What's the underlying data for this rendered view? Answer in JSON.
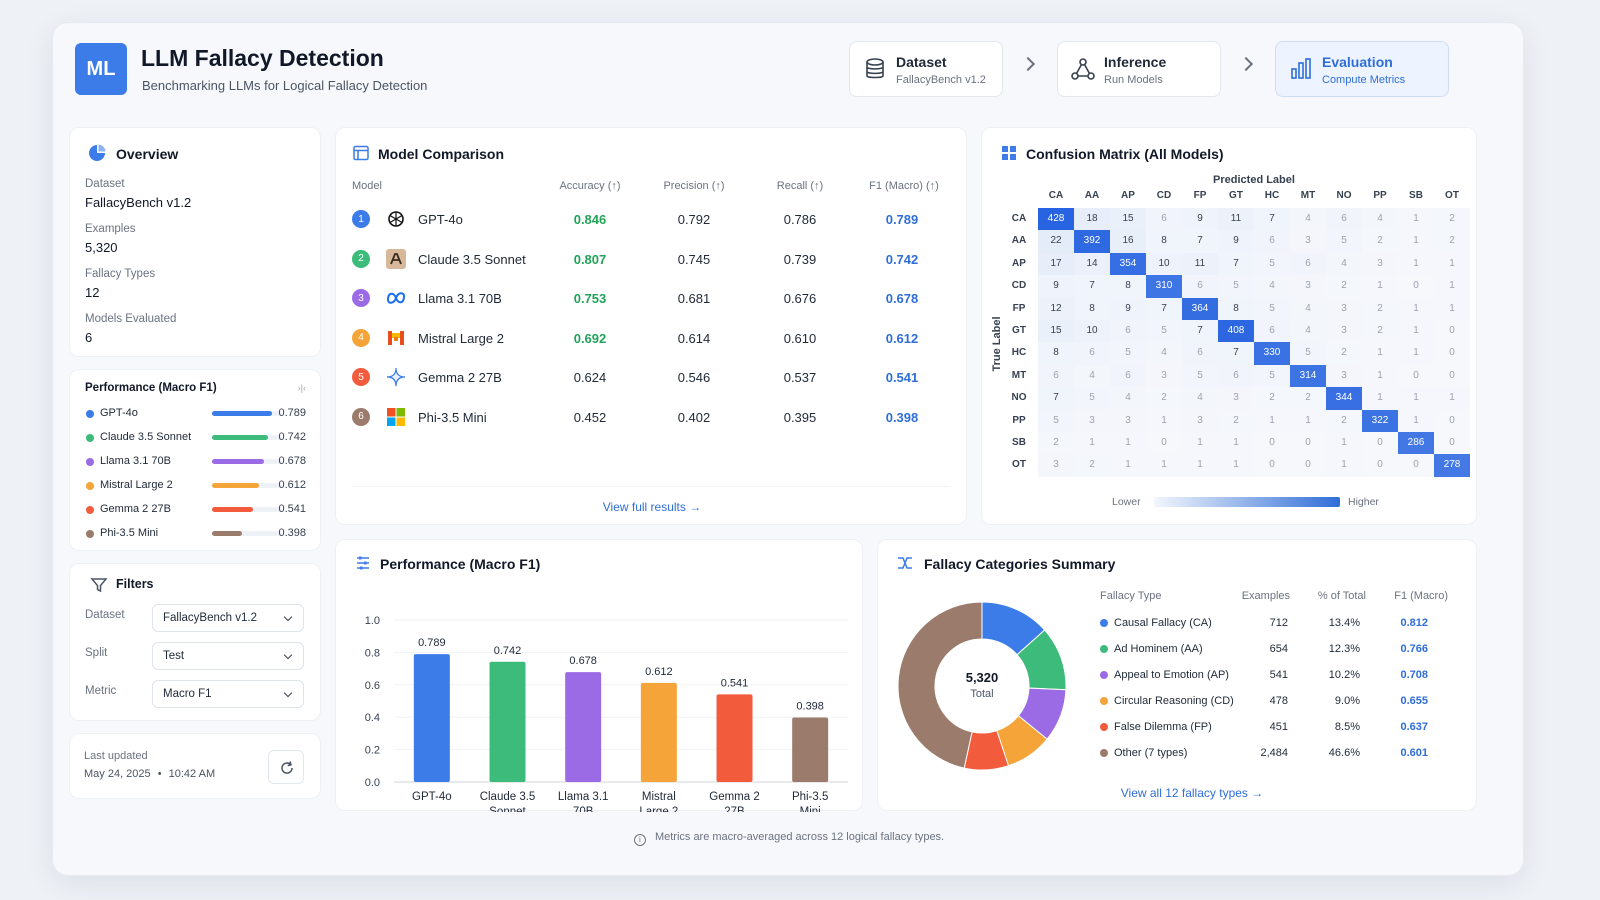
{
  "header": {
    "logo": "ML",
    "title": "LLM Fallacy Detection",
    "subtitle": "Benchmarking LLMs for Logical Fallacy Detection",
    "steps": [
      {
        "title": "Dataset",
        "sub": "FallacyBench v1.2",
        "icon": "database-icon"
      },
      {
        "title": "Inference",
        "sub": "Run Models",
        "icon": "network-icon"
      },
      {
        "title": "Evaluation",
        "sub": "Compute Metrics",
        "icon": "bar-chart-icon"
      }
    ]
  },
  "overview": {
    "title": "Overview",
    "items": [
      {
        "label": "Dataset",
        "value": "FallacyBench v1.2"
      },
      {
        "label": "Examples",
        "value": "5,320"
      },
      {
        "label": "Fallacy Types",
        "value": "12"
      },
      {
        "label": "Models Evaluated",
        "value": "6"
      }
    ]
  },
  "performance_sidebar": {
    "title": "Performance (Macro F1)",
    "expand_glyph": "›|‹",
    "items": [
      {
        "name": "GPT-4o",
        "value": "0.789",
        "frac": 0.789,
        "color": "#3b7ce8"
      },
      {
        "name": "Claude 3.5 Sonnet",
        "value": "0.742",
        "frac": 0.742,
        "color": "#3dbb7a"
      },
      {
        "name": "Llama 3.1 70B",
        "value": "0.678",
        "frac": 0.678,
        "color": "#9b6be6"
      },
      {
        "name": "Mistral Large 2",
        "value": "0.612",
        "frac": 0.612,
        "color": "#f5a43a"
      },
      {
        "name": "Gemma 2 27B",
        "value": "0.541",
        "frac": 0.541,
        "color": "#f25c3c"
      },
      {
        "name": "Phi-3.5 Mini",
        "value": "0.398",
        "frac": 0.398,
        "color": "#9b7b6b"
      }
    ]
  },
  "filters": {
    "title": "Filters",
    "items": [
      {
        "label": "Dataset",
        "value": "FallacyBench v1.2"
      },
      {
        "label": "Split",
        "value": "Test"
      },
      {
        "label": "Metric",
        "value": "Macro F1"
      }
    ]
  },
  "updated": {
    "label": "Last updated",
    "date": "May 24, 2025",
    "sep": "•",
    "time": "10:42 AM"
  },
  "model_comparison": {
    "title": "Model Comparison",
    "columns": [
      "Model",
      "Accuracy (↑)",
      "Precision (↑)",
      "Recall (↑)",
      "F1 (Macro) (↑)"
    ],
    "rows": [
      {
        "rank": "1",
        "name": "GPT-4o",
        "acc": "0.846",
        "prec": "0.792",
        "rec": "0.786",
        "f1": "0.789",
        "rank_color": "#3b7ce8",
        "acc_green": true
      },
      {
        "rank": "2",
        "name": "Claude 3.5 Sonnet",
        "acc": "0.807",
        "prec": "0.745",
        "rec": "0.739",
        "f1": "0.742",
        "rank_color": "#3dbb7a",
        "acc_green": true
      },
      {
        "rank": "3",
        "name": "Llama 3.1 70B",
        "acc": "0.753",
        "prec": "0.681",
        "rec": "0.676",
        "f1": "0.678",
        "rank_color": "#9b6be6",
        "acc_green": true
      },
      {
        "rank": "4",
        "name": "Mistral Large 2",
        "acc": "0.692",
        "prec": "0.614",
        "rec": "0.610",
        "f1": "0.612",
        "rank_color": "#f5a43a",
        "acc_green": true
      },
      {
        "rank": "5",
        "name": "Gemma 2 27B",
        "acc": "0.624",
        "prec": "0.546",
        "rec": "0.537",
        "f1": "0.541",
        "rank_color": "#f25c3c",
        "acc_green": false
      },
      {
        "rank": "6",
        "name": "Phi-3.5 Mini",
        "acc": "0.452",
        "prec": "0.402",
        "rec": "0.395",
        "f1": "0.398",
        "rank_color": "#9b7b6b",
        "acc_green": false
      }
    ],
    "link": "View full results →"
  },
  "confusion": {
    "title": "Confusion Matrix (All Models)",
    "x_title": "Predicted Label",
    "y_title": "True Label",
    "labels": [
      "CA",
      "AA",
      "AP",
      "CD",
      "FP",
      "GT",
      "HC",
      "MT",
      "NO",
      "PP",
      "SB",
      "OT"
    ],
    "matrix": [
      [
        428,
        18,
        15,
        6,
        9,
        11,
        7,
        4,
        6,
        4,
        1,
        2
      ],
      [
        22,
        392,
        16,
        8,
        7,
        9,
        6,
        3,
        5,
        2,
        1,
        2
      ],
      [
        17,
        14,
        354,
        10,
        11,
        7,
        5,
        6,
        4,
        3,
        1,
        1
      ],
      [
        9,
        7,
        8,
        310,
        6,
        5,
        4,
        3,
        2,
        1,
        0,
        1
      ],
      [
        12,
        8,
        9,
        7,
        364,
        8,
        5,
        4,
        3,
        2,
        1,
        1
      ],
      [
        15,
        10,
        6,
        5,
        7,
        408,
        6,
        4,
        3,
        2,
        1,
        0
      ],
      [
        8,
        6,
        5,
        4,
        6,
        7,
        330,
        5,
        2,
        1,
        1,
        0
      ],
      [
        6,
        4,
        6,
        3,
        5,
        6,
        5,
        314,
        3,
        1,
        0,
        0
      ],
      [
        7,
        5,
        4,
        2,
        4,
        3,
        2,
        2,
        344,
        1,
        1,
        1
      ],
      [
        5,
        3,
        3,
        1,
        3,
        2,
        1,
        1,
        2,
        322,
        1,
        0
      ],
      [
        2,
        1,
        1,
        0,
        1,
        1,
        0,
        0,
        1,
        0,
        286,
        0
      ],
      [
        3,
        2,
        1,
        1,
        1,
        1,
        0,
        0,
        1,
        0,
        0,
        278
      ]
    ],
    "legend_low": "Lower",
    "legend_high": "Higher"
  },
  "chart_data": {
    "type": "bar",
    "title": "Performance (Macro F1)",
    "categories": [
      "GPT-4o",
      "Claude 3.5 Sonnet",
      "Llama 3.1 70B",
      "Mistral Large 2",
      "Gemma 2 27B",
      "Phi-3.5 Mini"
    ],
    "category_lines": [
      [
        "GPT-4o"
      ],
      [
        "Claude 3.5",
        "Sonnet"
      ],
      [
        "Llama 3.1",
        "70B"
      ],
      [
        "Mistral",
        "Large 2"
      ],
      [
        "Gemma 2",
        "27B"
      ],
      [
        "Phi-3.5",
        "Mini"
      ]
    ],
    "values": [
      0.789,
      0.742,
      0.678,
      0.612,
      0.541,
      0.398
    ],
    "value_labels": [
      "0.789",
      "0.742",
      "0.678",
      "0.612",
      "0.541",
      "0.398"
    ],
    "colors": [
      "#3b7ce8",
      "#3dbb7a",
      "#9b6be6",
      "#f5a43a",
      "#f25c3c",
      "#9b7b6b"
    ],
    "yticks": [
      "0.0",
      "0.2",
      "0.4",
      "0.6",
      "0.8",
      "1.0"
    ],
    "ylim": [
      0,
      1.0
    ],
    "grid": true
  },
  "fallacy_summary": {
    "title": "Fallacy Categories Summary",
    "donut_total": "5,320",
    "donut_label": "Total",
    "columns": [
      "Fallacy Type",
      "Examples",
      "% of Total",
      "F1 (Macro)"
    ],
    "rows": [
      {
        "name": "Causal Fallacy (CA)",
        "examples": "712",
        "pct": "13.4%",
        "f1": "0.812",
        "color": "#3b7ce8",
        "share": 13.4
      },
      {
        "name": "Ad Hominem (AA)",
        "examples": "654",
        "pct": "12.3%",
        "f1": "0.766",
        "color": "#3dbb7a",
        "share": 12.3
      },
      {
        "name": "Appeal to Emotion (AP)",
        "examples": "541",
        "pct": "10.2%",
        "f1": "0.708",
        "color": "#9b6be6",
        "share": 10.2
      },
      {
        "name": "Circular Reasoning (CD)",
        "examples": "478",
        "pct": "9.0%",
        "f1": "0.655",
        "color": "#f5a43a",
        "share": 9.0
      },
      {
        "name": "False Dilemma (FP)",
        "examples": "451",
        "pct": "8.5%",
        "f1": "0.637",
        "color": "#f25c3c",
        "share": 8.5
      },
      {
        "name": "Other (7 types)",
        "examples": "2,484",
        "pct": "46.6%",
        "f1": "0.601",
        "color": "#9b7b6b",
        "share": 46.6
      }
    ],
    "link": "View all 12 fallacy types →"
  },
  "footer": {
    "note": "Metrics are macro-averaged across 12 logical fallacy types."
  }
}
